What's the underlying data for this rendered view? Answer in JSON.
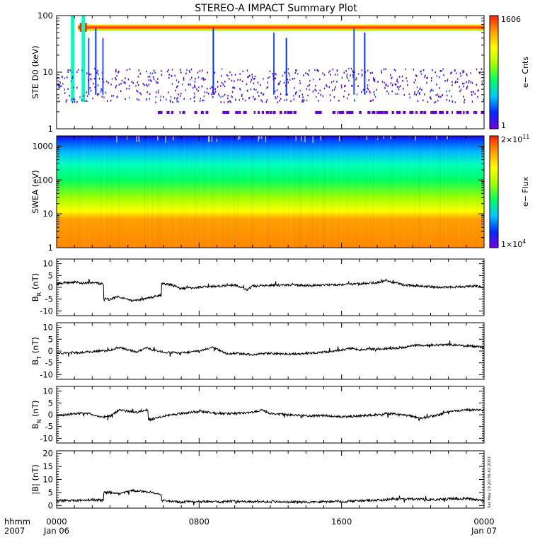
{
  "title": "STEREO-A IMPACT Summary Plot",
  "x_axis": {
    "row1_label": "hhmm",
    "row2_label": "2007",
    "ticks": [
      {
        "hour": 0,
        "label": "0000",
        "date": "Jan 06"
      },
      {
        "hour": 8,
        "label": "0800",
        "date": ""
      },
      {
        "hour": 16,
        "label": "1600",
        "date": ""
      },
      {
        "hour": 24,
        "label": "0000",
        "date": "Jan 07"
      }
    ],
    "range_hours": [
      0,
      24
    ]
  },
  "timestamp": "Sat May 19 20:36:42 2007",
  "colors": {
    "colormap": [
      "#7a00e0",
      "#0028ff",
      "#00c8ff",
      "#00ff60",
      "#a0ff00",
      "#ffff00",
      "#ffa000",
      "#ff2000"
    ]
  },
  "chart_data": [
    {
      "type": "heatmap",
      "ylabel": "STE D0 (keV)",
      "yscale": "log",
      "ylim": [
        1,
        100
      ],
      "yticks": [
        "1",
        "10",
        "100"
      ],
      "colorbar": {
        "label": "e− Cnts",
        "max_label": "1606",
        "min_label": "1"
      },
      "features": {
        "continuous_band_keV": [
          55,
          70
        ],
        "band_start_hour": 1.2,
        "bursts_hours": [
          0.9,
          1.5,
          2.6,
          8.8,
          12.2,
          12.9,
          16.7,
          17.3,
          1.8,
          2.2
        ],
        "sparse_noise_keV": [
          3,
          12
        ],
        "low_row_keV": 2
      }
    },
    {
      "type": "heatmap",
      "ylabel": "SWEA (eV)",
      "yscale": "log",
      "ylim": [
        1,
        2000
      ],
      "yticks": [
        "1",
        "10",
        "100",
        "1000"
      ],
      "colorbar": {
        "label": "e− Flux",
        "max_label": "2×10",
        "max_exp": "11",
        "min_label": "1×10",
        "min_exp": "4"
      },
      "features": {
        "energy_gradient_eV": [
          [
            1,
            "#ff8800"
          ],
          [
            7,
            "#ffa000"
          ],
          [
            12,
            "#ffff00"
          ],
          [
            30,
            "#a0ff00"
          ],
          [
            100,
            "#00ff60"
          ],
          [
            300,
            "#00ffc0"
          ],
          [
            700,
            "#00b4ff"
          ],
          [
            1500,
            "#0040ff"
          ],
          [
            2000,
            "#2000e0"
          ]
        ]
      }
    },
    {
      "type": "line",
      "ylabel": "B",
      "ylabel_sub": "R",
      "ylabel_unit": " (nT)",
      "ylim": [
        -12,
        12
      ],
      "yticks": [
        -10,
        -5,
        0,
        5,
        10
      ],
      "x": [
        0,
        0.5,
        1.0,
        1.5,
        2.0,
        2.5,
        2.8,
        3.0,
        3.2,
        3.5,
        3.9,
        4.3,
        4.7,
        5.2,
        5.8,
        6.0,
        6.5,
        7.0,
        8.0,
        9.0,
        10.0,
        10.7,
        11.0,
        12.0,
        13.0,
        14.0,
        15.0,
        16.0,
        17.0,
        18.0,
        18.5,
        19.5,
        20.5,
        21.5,
        22.5,
        23.5,
        24.0
      ],
      "y": [
        1.5,
        2,
        2.2,
        1.8,
        2.0,
        1.5,
        -4.8,
        -5.2,
        -4.5,
        -3.8,
        -5.0,
        -5.8,
        -5.2,
        -4.5,
        -3.5,
        1.5,
        1.0,
        -0.5,
        0.0,
        0.5,
        1.0,
        -1.0,
        0.5,
        0.8,
        1.0,
        0.8,
        1.0,
        1.2,
        1.5,
        2.0,
        2.8,
        1.0,
        0.5,
        0.0,
        0.2,
        0.5,
        0.0
      ]
    },
    {
      "type": "line",
      "ylabel": "B",
      "ylabel_sub": "T",
      "ylabel_unit": " (nT)",
      "ylim": [
        -12,
        12
      ],
      "yticks": [
        -10,
        -5,
        0,
        5,
        10
      ],
      "x": [
        0,
        1.0,
        2.0,
        3.0,
        3.5,
        4.5,
        5.0,
        5.5,
        6.0,
        7.0,
        8.0,
        8.8,
        9.5,
        10.0,
        11.0,
        12.0,
        13.0,
        14.0,
        15.0,
        16.0,
        16.5,
        17.0,
        17.5,
        18.5,
        19.5,
        20.0,
        21.0,
        22.0,
        23.0,
        23.5,
        24.0
      ],
      "y": [
        -1.0,
        -0.8,
        -0.3,
        0.3,
        1.5,
        -0.5,
        1.5,
        0.2,
        -0.5,
        -0.8,
        0.0,
        1.5,
        -1.0,
        -1.0,
        -1.5,
        -1.0,
        -1.3,
        -1.0,
        -0.5,
        0.5,
        1.2,
        0.5,
        0.8,
        1.0,
        1.5,
        2.3,
        2.5,
        2.7,
        2.2,
        2.0,
        1.5
      ]
    },
    {
      "type": "line",
      "ylabel": "B",
      "ylabel_sub": "N",
      "ylabel_unit": " (nT)",
      "ylim": [
        -12,
        12
      ],
      "yticks": [
        -10,
        -5,
        0,
        5,
        10
      ],
      "x": [
        0,
        1.0,
        1.8,
        2.5,
        3.0,
        3.5,
        4.0,
        4.5,
        5.0,
        5.3,
        6.0,
        7.0,
        8.0,
        9.0,
        10.0,
        11.0,
        11.5,
        12.0,
        13.0,
        14.0,
        15.0,
        16.0,
        17.0,
        18.0,
        18.5,
        19.5,
        20.5,
        21.5,
        22.0,
        23.0,
        24.0
      ],
      "y": [
        -0.5,
        0.5,
        0.5,
        -1.0,
        -0.5,
        2.0,
        1.5,
        1.0,
        2.0,
        -2.0,
        -0.5,
        0.5,
        1.5,
        0.5,
        0.5,
        1.0,
        2.0,
        0.5,
        0.0,
        -0.5,
        -0.3,
        -1.0,
        -0.5,
        0.0,
        0.5,
        0.0,
        -1.5,
        0.0,
        1.5,
        2.0,
        2.0
      ]
    },
    {
      "type": "line",
      "ylabel": "|B|",
      "ylabel_sub": "",
      "ylabel_unit": " (nT)",
      "ylim": [
        -1,
        21
      ],
      "yticks": [
        0,
        5,
        10,
        15,
        20
      ],
      "x": [
        0,
        1.0,
        2.0,
        2.5,
        2.8,
        3.0,
        3.2,
        3.5,
        3.9,
        4.3,
        4.7,
        5.2,
        5.8,
        6.0,
        7.0,
        8.0,
        9.0,
        10.0,
        11.0,
        12.0,
        13.0,
        14.0,
        15.0,
        16.0,
        17.0,
        18.0,
        19.0,
        20.0,
        21.0,
        22.0,
        23.0,
        24.0
      ],
      "y": [
        2.0,
        1.8,
        2.2,
        2.0,
        5.0,
        5.2,
        4.8,
        4.5,
        5.2,
        5.8,
        5.5,
        5.2,
        4.5,
        1.8,
        1.3,
        1.5,
        1.4,
        1.6,
        1.4,
        1.5,
        1.4,
        1.3,
        1.5,
        1.5,
        1.8,
        2.0,
        2.5,
        2.5,
        2.2,
        2.5,
        2.7,
        2.0
      ]
    }
  ]
}
